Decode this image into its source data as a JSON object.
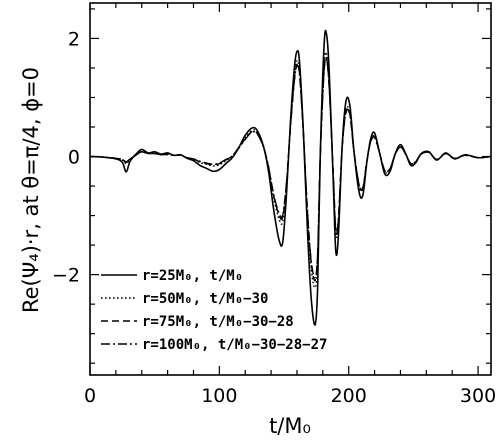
{
  "chart_data": {
    "type": "line",
    "xlabel": "t/M₀",
    "ylabel": "Re(Ψ₄)·r,  at θ=π/4,  ϕ=0",
    "xlim": [
      0,
      310
    ],
    "ylim": [
      -3.7,
      2.6
    ],
    "x_ticks": [
      0,
      100,
      200,
      300
    ],
    "y_ticks": [
      -2,
      0,
      2
    ],
    "x_tick_labels": [
      "0",
      "100",
      "200",
      "300"
    ],
    "y_tick_labels": [
      "−2",
      "0",
      "2"
    ],
    "legend_position": "lower-left",
    "grid": false,
    "series": [
      {
        "name": "r=25M₀,  t/M₀",
        "style": "solid",
        "points": [
          [
            0,
            0.0
          ],
          [
            10,
            -0.01
          ],
          [
            20,
            -0.04
          ],
          [
            25,
            -0.1
          ],
          [
            28,
            -0.26
          ],
          [
            31,
            -0.08
          ],
          [
            36,
            0.05
          ],
          [
            40,
            0.12
          ],
          [
            45,
            0.06
          ],
          [
            50,
            0.08
          ],
          [
            55,
            0.04
          ],
          [
            60,
            0.06
          ],
          [
            65,
            0.02
          ],
          [
            70,
            0.03
          ],
          [
            75,
            -0.03
          ],
          [
            80,
            -0.07
          ],
          [
            85,
            -0.15
          ],
          [
            90,
            -0.2
          ],
          [
            95,
            -0.25
          ],
          [
            100,
            -0.22
          ],
          [
            105,
            -0.12
          ],
          [
            110,
            -0.02
          ],
          [
            115,
            0.15
          ],
          [
            120,
            0.36
          ],
          [
            125,
            0.48
          ],
          [
            129,
            0.45
          ],
          [
            134,
            0.18
          ],
          [
            138,
            -0.25
          ],
          [
            142,
            -0.9
          ],
          [
            146,
            -1.4
          ],
          [
            149,
            -1.45
          ],
          [
            152,
            -0.6
          ],
          [
            155,
            0.6
          ],
          [
            158,
            1.5
          ],
          [
            160,
            1.78
          ],
          [
            162,
            1.6
          ],
          [
            165,
            0.4
          ],
          [
            168,
            -1.2
          ],
          [
            171,
            -2.4
          ],
          [
            174,
            -2.85
          ],
          [
            176,
            -2.2
          ],
          [
            178,
            0.0
          ],
          [
            181,
            1.9
          ],
          [
            183,
            2.05
          ],
          [
            185,
            1.4
          ],
          [
            188,
            -0.4
          ],
          [
            190,
            -1.6
          ],
          [
            192,
            -1.35
          ],
          [
            195,
            0.2
          ],
          [
            198,
            0.95
          ],
          [
            201,
            0.85
          ],
          [
            204,
            0.1
          ],
          [
            208,
            -0.6
          ],
          [
            211,
            -0.65
          ],
          [
            214,
            -0.1
          ],
          [
            217,
            0.3
          ],
          [
            220,
            0.4
          ],
          [
            224,
            0.05
          ],
          [
            228,
            -0.3
          ],
          [
            232,
            -0.25
          ],
          [
            236,
            0.05
          ],
          [
            240,
            0.2
          ],
          [
            244,
            0.05
          ],
          [
            248,
            -0.15
          ],
          [
            252,
            -0.1
          ],
          [
            256,
            0.05
          ],
          [
            262,
            0.08
          ],
          [
            268,
            -0.06
          ],
          [
            275,
            0.06
          ],
          [
            282,
            -0.04
          ],
          [
            290,
            0.03
          ],
          [
            300,
            -0.02
          ],
          [
            310,
            0.0
          ]
        ]
      },
      {
        "name": "r=50M₀,  t/M₀−30",
        "style": "dotted",
        "points": [
          [
            0,
            0.0
          ],
          [
            10,
            -0.01
          ],
          [
            20,
            -0.04
          ],
          [
            25,
            -0.06
          ],
          [
            28,
            -0.12
          ],
          [
            31,
            -0.05
          ],
          [
            36,
            0.03
          ],
          [
            40,
            0.09
          ],
          [
            45,
            0.05
          ],
          [
            50,
            0.06
          ],
          [
            55,
            0.03
          ],
          [
            60,
            0.04
          ],
          [
            65,
            0.02
          ],
          [
            70,
            0.02
          ],
          [
            75,
            -0.02
          ],
          [
            80,
            -0.05
          ],
          [
            85,
            -0.1
          ],
          [
            90,
            -0.13
          ],
          [
            95,
            -0.16
          ],
          [
            100,
            -0.14
          ],
          [
            105,
            -0.07
          ],
          [
            110,
            0.01
          ],
          [
            115,
            0.16
          ],
          [
            120,
            0.32
          ],
          [
            125,
            0.44
          ],
          [
            129,
            0.42
          ],
          [
            134,
            0.18
          ],
          [
            138,
            -0.2
          ],
          [
            142,
            -0.7
          ],
          [
            146,
            -1.05
          ],
          [
            149,
            -1.1
          ],
          [
            152,
            -0.45
          ],
          [
            155,
            0.55
          ],
          [
            158,
            1.35
          ],
          [
            160,
            1.62
          ],
          [
            162,
            1.45
          ],
          [
            165,
            0.4
          ],
          [
            168,
            -0.95
          ],
          [
            171,
            -1.9
          ],
          [
            174,
            -2.22
          ],
          [
            176,
            -1.75
          ],
          [
            178,
            0.0
          ],
          [
            181,
            1.55
          ],
          [
            183,
            1.72
          ],
          [
            185,
            1.2
          ],
          [
            188,
            -0.3
          ],
          [
            190,
            -1.3
          ],
          [
            192,
            -1.12
          ],
          [
            195,
            0.18
          ],
          [
            198,
            0.8
          ],
          [
            201,
            0.72
          ],
          [
            204,
            0.1
          ],
          [
            208,
            -0.5
          ],
          [
            211,
            -0.55
          ],
          [
            214,
            -0.08
          ],
          [
            217,
            0.26
          ],
          [
            220,
            0.34
          ],
          [
            224,
            0.05
          ],
          [
            228,
            -0.26
          ],
          [
            232,
            -0.21
          ],
          [
            236,
            0.04
          ],
          [
            240,
            0.17
          ],
          [
            244,
            0.04
          ],
          [
            248,
            -0.13
          ],
          [
            252,
            -0.08
          ],
          [
            256,
            0.04
          ],
          [
            262,
            0.07
          ],
          [
            268,
            -0.05
          ],
          [
            275,
            0.05
          ],
          [
            282,
            -0.04
          ],
          [
            290,
            0.03
          ],
          [
            300,
            -0.02
          ],
          [
            310,
            0.0
          ]
        ]
      },
      {
        "name": "r=75M₀,  t/M₀−30−28",
        "style": "dashed",
        "points": [
          [
            0,
            0.0
          ],
          [
            10,
            -0.01
          ],
          [
            20,
            -0.03
          ],
          [
            25,
            -0.05
          ],
          [
            28,
            -0.1
          ],
          [
            31,
            -0.04
          ],
          [
            36,
            0.03
          ],
          [
            40,
            0.08
          ],
          [
            45,
            0.05
          ],
          [
            50,
            0.05
          ],
          [
            55,
            0.03
          ],
          [
            60,
            0.04
          ],
          [
            65,
            0.02
          ],
          [
            70,
            0.02
          ],
          [
            75,
            -0.02
          ],
          [
            80,
            -0.04
          ],
          [
            85,
            -0.09
          ],
          [
            90,
            -0.12
          ],
          [
            95,
            -0.14
          ],
          [
            100,
            -0.12
          ],
          [
            105,
            -0.06
          ],
          [
            110,
            0.01
          ],
          [
            115,
            0.15
          ],
          [
            120,
            0.3
          ],
          [
            125,
            0.42
          ],
          [
            129,
            0.4
          ],
          [
            134,
            0.17
          ],
          [
            138,
            -0.18
          ],
          [
            142,
            -0.66
          ],
          [
            146,
            -0.98
          ],
          [
            149,
            -1.02
          ],
          [
            152,
            -0.42
          ],
          [
            155,
            0.52
          ],
          [
            158,
            1.3
          ],
          [
            160,
            1.56
          ],
          [
            162,
            1.4
          ],
          [
            165,
            0.38
          ],
          [
            168,
            -0.9
          ],
          [
            171,
            -1.8
          ],
          [
            174,
            -2.1
          ],
          [
            176,
            -1.65
          ],
          [
            178,
            0.0
          ],
          [
            181,
            1.48
          ],
          [
            183,
            1.65
          ],
          [
            185,
            1.15
          ],
          [
            188,
            -0.28
          ],
          [
            190,
            -1.25
          ],
          [
            192,
            -1.08
          ],
          [
            195,
            0.17
          ],
          [
            198,
            0.77
          ],
          [
            201,
            0.7
          ],
          [
            204,
            0.1
          ],
          [
            208,
            -0.48
          ],
          [
            211,
            -0.53
          ],
          [
            214,
            -0.08
          ],
          [
            217,
            0.25
          ],
          [
            220,
            0.33
          ],
          [
            224,
            0.05
          ],
          [
            228,
            -0.25
          ],
          [
            232,
            -0.2
          ],
          [
            236,
            0.04
          ],
          [
            240,
            0.16
          ],
          [
            244,
            0.04
          ],
          [
            248,
            -0.12
          ],
          [
            252,
            -0.08
          ],
          [
            256,
            0.04
          ],
          [
            262,
            0.07
          ],
          [
            268,
            -0.05
          ],
          [
            275,
            0.05
          ],
          [
            282,
            -0.03
          ],
          [
            290,
            0.02
          ],
          [
            300,
            -0.02
          ],
          [
            310,
            0.0
          ]
        ]
      },
      {
        "name": "r=100M₀,  t/M₀−30−28−27",
        "style": "dashdot",
        "points": [
          [
            0,
            0.0
          ],
          [
            10,
            -0.01
          ],
          [
            20,
            -0.03
          ],
          [
            25,
            -0.05
          ],
          [
            28,
            -0.09
          ],
          [
            31,
            -0.04
          ],
          [
            36,
            0.03
          ],
          [
            40,
            0.08
          ],
          [
            45,
            0.05
          ],
          [
            50,
            0.05
          ],
          [
            55,
            0.03
          ],
          [
            60,
            0.03
          ],
          [
            65,
            0.02
          ],
          [
            70,
            0.02
          ],
          [
            75,
            -0.02
          ],
          [
            80,
            -0.04
          ],
          [
            85,
            -0.08
          ],
          [
            90,
            -0.11
          ],
          [
            95,
            -0.13
          ],
          [
            100,
            -0.11
          ],
          [
            105,
            -0.05
          ],
          [
            110,
            0.01
          ],
          [
            115,
            0.14
          ],
          [
            120,
            0.29
          ],
          [
            125,
            0.41
          ],
          [
            129,
            0.39
          ],
          [
            134,
            0.17
          ],
          [
            138,
            -0.17
          ],
          [
            142,
            -0.64
          ],
          [
            146,
            -0.95
          ],
          [
            149,
            -0.99
          ],
          [
            152,
            -0.41
          ],
          [
            155,
            0.5
          ],
          [
            158,
            1.28
          ],
          [
            160,
            1.53
          ],
          [
            162,
            1.38
          ],
          [
            165,
            0.37
          ],
          [
            168,
            -0.88
          ],
          [
            171,
            -1.76
          ],
          [
            174,
            -2.05
          ],
          [
            176,
            -1.62
          ],
          [
            178,
            0.0
          ],
          [
            181,
            1.45
          ],
          [
            183,
            1.62
          ],
          [
            185,
            1.13
          ],
          [
            188,
            -0.27
          ],
          [
            190,
            -1.22
          ],
          [
            192,
            -1.06
          ],
          [
            195,
            0.17
          ],
          [
            198,
            0.75
          ],
          [
            201,
            0.69
          ],
          [
            204,
            0.1
          ],
          [
            208,
            -0.47
          ],
          [
            211,
            -0.52
          ],
          [
            214,
            -0.08
          ],
          [
            217,
            0.25
          ],
          [
            220,
            0.32
          ],
          [
            224,
            0.05
          ],
          [
            228,
            -0.24
          ],
          [
            232,
            -0.2
          ],
          [
            236,
            0.04
          ],
          [
            240,
            0.16
          ],
          [
            244,
            0.04
          ],
          [
            248,
            -0.12
          ],
          [
            252,
            -0.08
          ],
          [
            256,
            0.04
          ],
          [
            262,
            0.07
          ],
          [
            268,
            -0.05
          ],
          [
            275,
            0.05
          ],
          [
            282,
            -0.03
          ],
          [
            290,
            0.02
          ],
          [
            300,
            -0.02
          ],
          [
            310,
            0.0
          ]
        ]
      }
    ]
  }
}
